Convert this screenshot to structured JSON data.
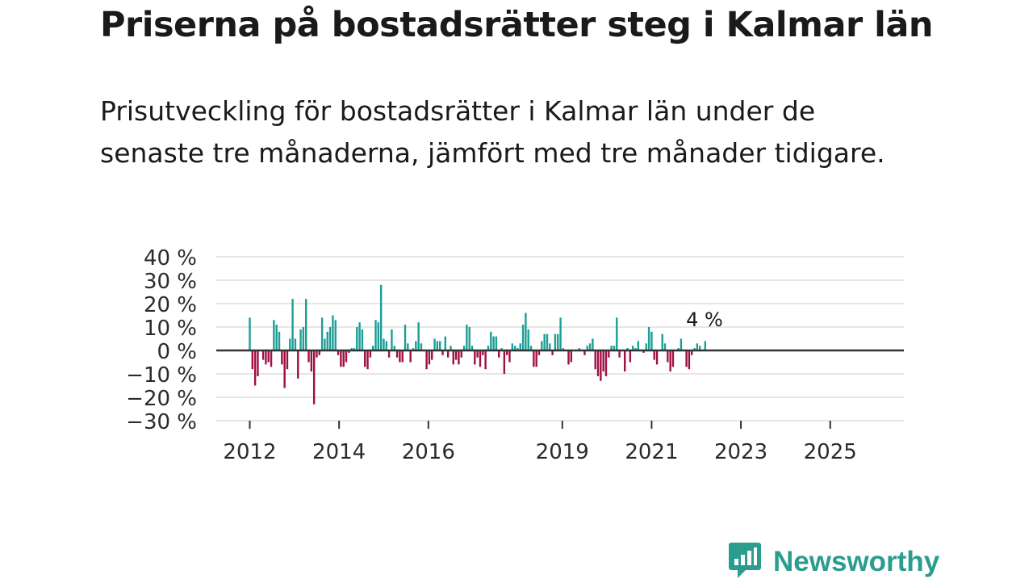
{
  "title": "Priserna på bostadsrätter steg i Kalmar län",
  "subtitle": "Prisutveckling för bostadsrätter i Kalmar län under de senaste tre månaderna, jämfört med tre månader tidigare.",
  "brand": {
    "name": "Newsworthy",
    "icon": "newsworthy-logo-icon"
  },
  "colors": {
    "positive": "#1a9e96",
    "negative": "#9e0f44",
    "grid": "#dddddd",
    "zero": "#333333",
    "brand": "#2a9d8f"
  },
  "chart_data": {
    "type": "bar",
    "title": "Priserna på bostadsrätter steg i Kalmar län",
    "xlabel": "",
    "ylabel": "",
    "ylim": [
      -30,
      40
    ],
    "y_ticks": [
      40,
      30,
      20,
      10,
      0,
      -10,
      -20,
      -30
    ],
    "y_tick_labels": [
      "40 %",
      "30 %",
      "20 %",
      "10 %",
      "0 %",
      "−10 %",
      "−20 %",
      "−30 %"
    ],
    "x_ticks": [
      2012,
      2014,
      2016,
      2019,
      2021,
      2023,
      2025
    ],
    "x_tick_labels": [
      "2012",
      "2014",
      "2016",
      "2019",
      "2021",
      "2023",
      "2025"
    ],
    "x_range": [
      2011.25,
      2026.65
    ],
    "x_start": 2012.0,
    "x_step": 0.06,
    "grid": true,
    "last_value_label": "4 %",
    "values": [
      14,
      -8,
      -15,
      -11,
      0,
      -4,
      -6,
      -5,
      -7,
      13,
      11,
      8,
      -6,
      -16,
      -8,
      5,
      22,
      5,
      -12,
      9,
      10,
      22,
      -5,
      -9,
      -23,
      -3,
      -2,
      14,
      5,
      8,
      10,
      15,
      13,
      -2,
      -7,
      -7,
      -5,
      -1,
      1,
      1,
      10,
      12,
      9,
      -7,
      -8,
      -3,
      2,
      13,
      12,
      28,
      5,
      4,
      -3,
      9,
      2,
      -3,
      -5,
      -5,
      11,
      3,
      -5,
      1,
      4,
      12,
      3,
      0,
      -8,
      -6,
      -4,
      5,
      4,
      4,
      -2,
      6,
      -3,
      2,
      -6,
      -4,
      -6,
      -3,
      2,
      11,
      10,
      2,
      -6,
      -3,
      -7,
      -2,
      -8,
      2,
      8,
      6,
      6,
      -3,
      1,
      -10,
      -2,
      -5,
      3,
      2,
      1,
      3,
      11,
      16,
      9,
      2,
      -7,
      -7,
      -2,
      4,
      7,
      7,
      3,
      -2,
      7,
      7,
      14,
      1,
      0,
      -6,
      -5,
      0,
      0,
      1,
      0,
      -2,
      2,
      3,
      5,
      -8,
      -11,
      -13,
      -9,
      -11,
      -3,
      2,
      2,
      14,
      -3,
      0,
      -9,
      1,
      -5,
      2,
      1,
      4,
      0,
      -1,
      3,
      10,
      8,
      -4,
      -6,
      0,
      7,
      3,
      -5,
      -9,
      -7,
      0,
      1,
      5,
      0,
      -7,
      -8,
      -2,
      1,
      3,
      2,
      0,
      4
    ]
  }
}
